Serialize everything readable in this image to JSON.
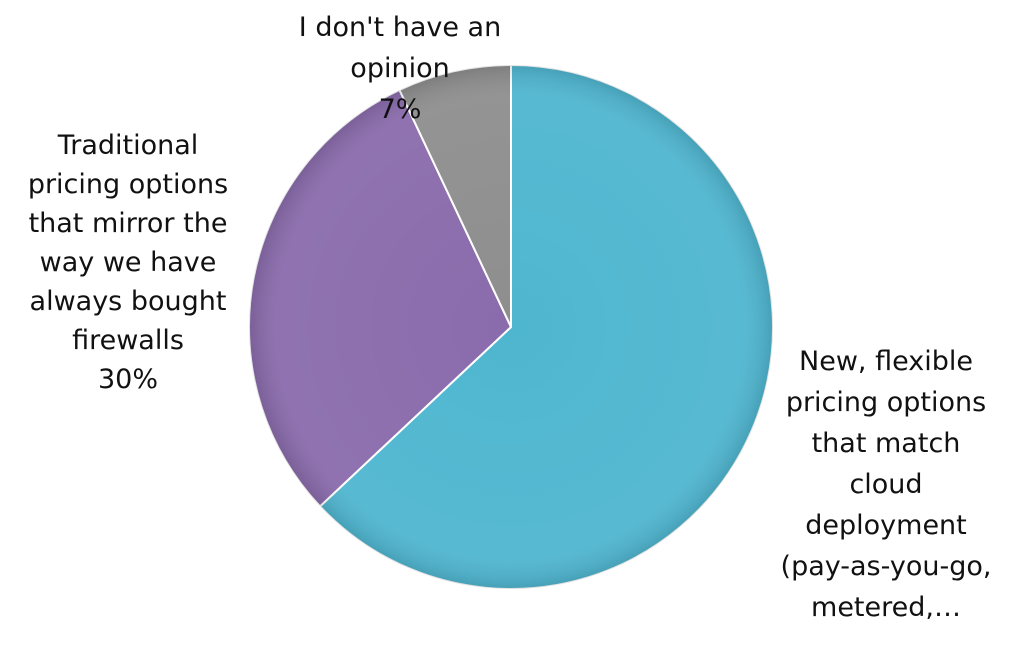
{
  "chart_data": {
    "type": "pie",
    "slices": [
      {
        "lines": [
          "New, flexible",
          "pricing options",
          "that match",
          "cloud",
          "deployment",
          "(pay-as-you-go,",
          "metered,…"
        ],
        "value": 63,
        "color": "#4fb6d0"
      },
      {
        "lines": [
          "Traditional",
          "pricing options",
          "that mirror the",
          "way we have",
          "always bought",
          "firewalls",
          "30%"
        ],
        "value": 30,
        "color": "#8a6bac"
      },
      {
        "lines": [
          "I don't have an",
          "opinion",
          "7%"
        ],
        "value": 7,
        "color": "#8e8e8e"
      }
    ]
  }
}
